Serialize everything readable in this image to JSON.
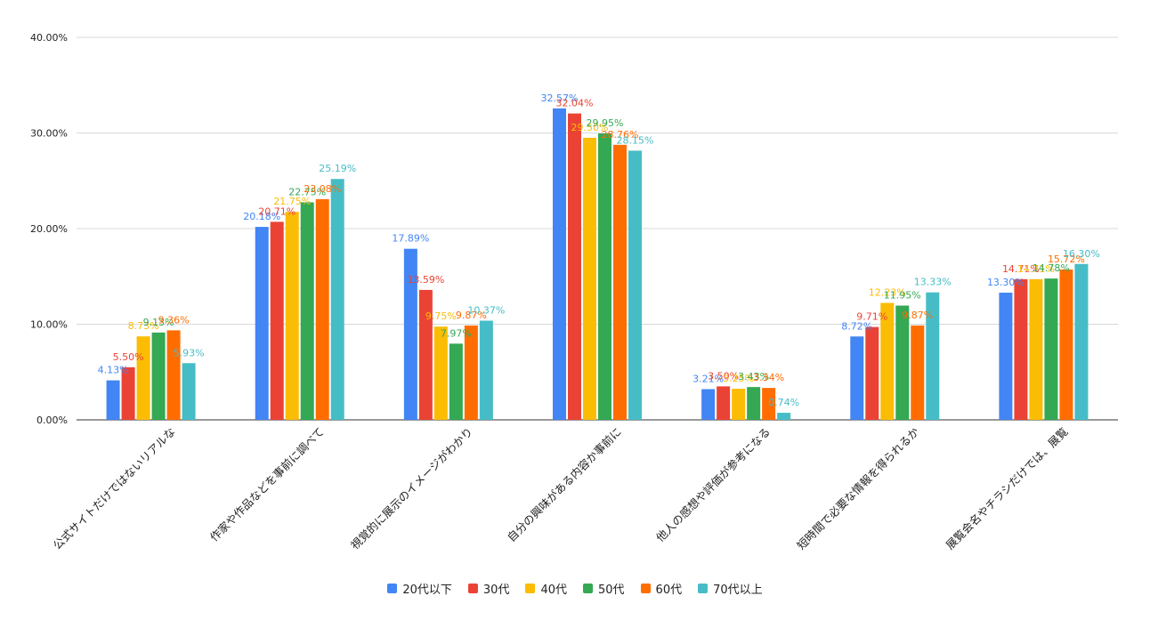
{
  "chart_data": {
    "type": "bar",
    "title": "",
    "xlabel": "",
    "ylabel": "",
    "ylim": [
      0,
      40
    ],
    "y_ticks": [
      "0.00%",
      "10.00%",
      "20.00%",
      "30.00%",
      "40.00%"
    ],
    "grid": true,
    "legend_position": "bottom",
    "categories": [
      "公式サイトだけではないリアルな",
      "作家や作品などを事前に調べて",
      "視覚的に展示のイメージがわかり",
      "自分の興味がある内容か事前に",
      "他人の感想や評価が参考になる",
      "短時間で必要な情報を得られるか",
      "展覧会名やチラシだけでは、展覧"
    ],
    "series": [
      {
        "name": "20代以下",
        "color": "#4285F4",
        "values": [
          4.13,
          20.18,
          17.89,
          32.57,
          3.21,
          8.72,
          13.3
        ],
        "labels": [
          "4.13%",
          "20.18%",
          "17.89%",
          "32.57%",
          "3.21%",
          "8.72%",
          "13.30%"
        ]
      },
      {
        "name": "30代",
        "color": "#EA4335",
        "values": [
          5.5,
          20.71,
          13.59,
          32.04,
          3.5,
          9.71,
          14.71
        ],
        "labels": [
          "5.50%",
          "20.71%",
          "13.59%",
          "32.04%",
          "3.50%",
          "9.71%",
          "14.71%"
        ]
      },
      {
        "name": "40代",
        "color": "#FBBC04",
        "values": [
          8.73,
          21.75,
          9.75,
          29.5,
          3.25,
          12.23,
          14.71
        ],
        "labels": [
          "8.73%",
          "21.75%",
          "9.75%",
          "29.50%",
          "3.25%",
          "12.23%",
          "14.71%"
        ]
      },
      {
        "name": "50代",
        "color": "#34A853",
        "values": [
          9.13,
          22.75,
          7.97,
          29.95,
          3.43,
          11.95,
          14.78
        ],
        "labels": [
          "9.13%",
          "22.75%",
          "7.97%",
          "29.95%",
          "3.43%",
          "11.95%",
          "14.78%"
        ]
      },
      {
        "name": "60代",
        "color": "#FF6D01",
        "values": [
          9.36,
          23.08,
          9.87,
          28.76,
          3.34,
          9.87,
          15.72
        ],
        "labels": [
          "9.36%",
          "23.08%",
          "9.87%",
          "28.76%",
          "3.34%",
          "9.87%",
          "15.72%"
        ]
      },
      {
        "name": "70代以上",
        "color": "#46BDC6",
        "values": [
          5.93,
          25.19,
          10.37,
          28.15,
          0.74,
          13.33,
          16.3
        ],
        "labels": [
          "5.93%",
          "25.19%",
          "10.37%",
          "28.15%",
          "0.74%",
          "13.33%",
          "16.30%"
        ]
      }
    ]
  }
}
